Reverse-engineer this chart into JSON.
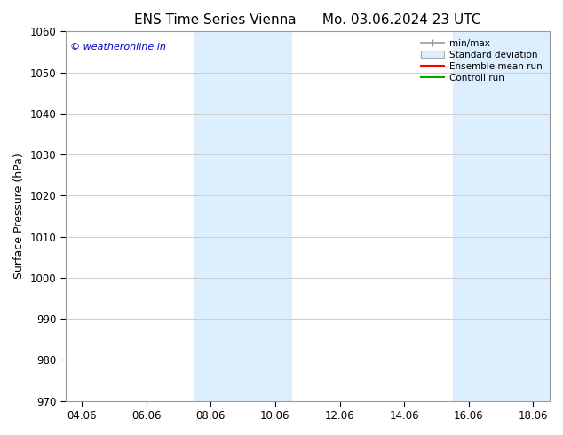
{
  "title": "ENS Time Series Vienna      Mo. 03.06.2024 23 UTC",
  "ylabel": "Surface Pressure (hPa)",
  "ylim": [
    970,
    1060
  ],
  "yticks": [
    970,
    980,
    990,
    1000,
    1010,
    1020,
    1030,
    1040,
    1050,
    1060
  ],
  "xtick_labels": [
    "04.06",
    "06.06",
    "08.06",
    "10.06",
    "12.06",
    "14.06",
    "16.06",
    "18.06"
  ],
  "xtick_positions": [
    0,
    2,
    4,
    6,
    8,
    10,
    12,
    14
  ],
  "xmin": -0.5,
  "xmax": 14.5,
  "blue_bands": [
    {
      "xmin": 3.5,
      "xmax": 6.5
    },
    {
      "xmin": 11.5,
      "xmax": 14.5
    }
  ],
  "band_color": "#ddeeff",
  "watermark": "© weatheronline.in",
  "watermark_color": "#0000cc",
  "legend_entries": [
    "min/max",
    "Standard deviation",
    "Ensemble mean run",
    "Controll run"
  ],
  "legend_colors": [
    "#aaaaaa",
    "#ccddee",
    "#ff0000",
    "#00aa00"
  ],
  "background_color": "#ffffff",
  "plot_bg_color": "#ffffff",
  "grid_color": "#cccccc",
  "title_fontsize": 11,
  "axis_fontsize": 9,
  "tick_fontsize": 8.5
}
